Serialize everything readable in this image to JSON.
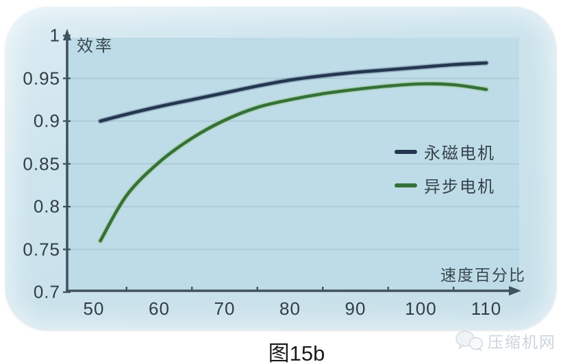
{
  "figure": {
    "caption": "图15b",
    "watermark": "压缩机网"
  },
  "chart_data": {
    "type": "line",
    "title": "",
    "ylabel": "效率",
    "xlabel": "速度百分比",
    "xlim": [
      45,
      115
    ],
    "ylim": [
      0.7,
      1.0
    ],
    "x_ticks": [
      50,
      60,
      70,
      80,
      90,
      100,
      110
    ],
    "x_tick_labels": [
      "50",
      "60",
      "70",
      "80",
      "90",
      "100",
      "110"
    ],
    "x_minor_ticks": [
      55,
      65,
      75,
      85,
      95,
      105
    ],
    "y_ticks": [
      1.0,
      0.95,
      0.9,
      0.85,
      0.8,
      0.75,
      0.7
    ],
    "y_tick_labels": [
      "1",
      "0.95",
      "0.9",
      "0.85",
      "0.8",
      "0.75",
      "0.7"
    ],
    "gridlines_y": [
      0.95,
      0.9,
      0.85,
      0.8,
      0.75
    ],
    "grid": "horizontal",
    "legend_position": "middle-right",
    "x": [
      51,
      55,
      60,
      65,
      70,
      75,
      80,
      85,
      90,
      95,
      100,
      105,
      110
    ],
    "series": [
      {
        "name": "永磁电机",
        "color": "#243650",
        "glow": "#4a617d",
        "values": [
          0.9,
          0.908,
          0.917,
          0.925,
          0.933,
          0.941,
          0.948,
          0.953,
          0.957,
          0.96,
          0.963,
          0.966,
          0.968
        ]
      },
      {
        "name": "异步电机",
        "color": "#34713a",
        "glow": "#8cc05e",
        "values": [
          0.76,
          0.813,
          0.852,
          0.88,
          0.901,
          0.916,
          0.925,
          0.932,
          0.937,
          0.941,
          0.9435,
          0.9425,
          0.937
        ]
      }
    ]
  },
  "colors": {
    "plot_bg": "#bedce7",
    "grid": "#a7c6d1",
    "axis": "#41535e",
    "tick_text": "#323d44"
  }
}
